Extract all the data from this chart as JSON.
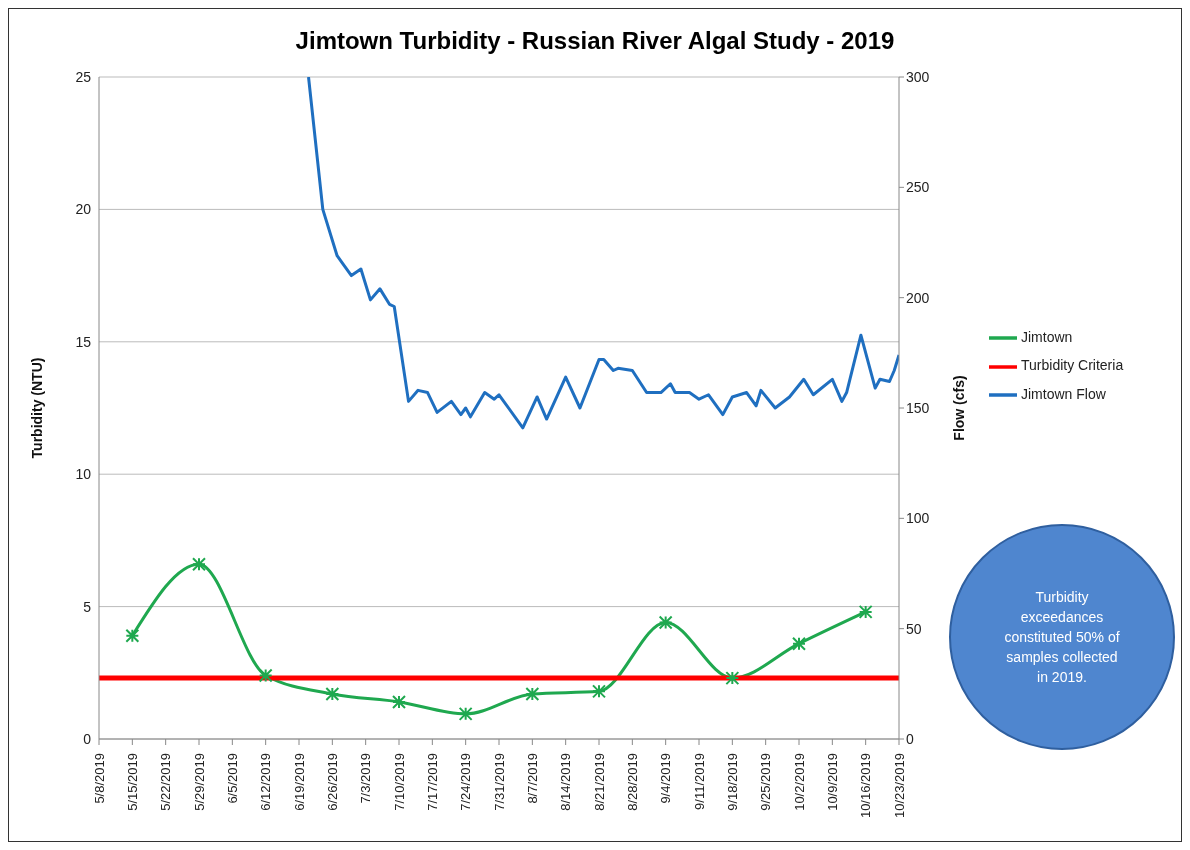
{
  "chart_data": {
    "type": "line",
    "title": "Jimtown Turbidity - Russian River Algal Study - 2019",
    "ylabel": "Turbidity (NTU)",
    "y2label": "Flow (cfs)",
    "xlim": [
      "2019-05-08",
      "2019-10-23"
    ],
    "xticks": [
      {
        "value": "2019-05-08",
        "label": "5/8/2019"
      },
      {
        "value": "2019-05-15",
        "label": "5/15/2019"
      },
      {
        "value": "2019-05-22",
        "label": "5/22/2019"
      },
      {
        "value": "2019-05-29",
        "label": "5/29/2019"
      },
      {
        "value": "2019-06-05",
        "label": "6/5/2019"
      },
      {
        "value": "2019-06-12",
        "label": "6/12/2019"
      },
      {
        "value": "2019-06-19",
        "label": "6/19/2019"
      },
      {
        "value": "2019-06-26",
        "label": "6/26/2019"
      },
      {
        "value": "2019-07-03",
        "label": "7/3/2019"
      },
      {
        "value": "2019-07-10",
        "label": "7/10/2019"
      },
      {
        "value": "2019-07-17",
        "label": "7/17/2019"
      },
      {
        "value": "2019-07-24",
        "label": "7/24/2019"
      },
      {
        "value": "2019-07-31",
        "label": "7/31/2019"
      },
      {
        "value": "2019-08-07",
        "label": "8/7/2019"
      },
      {
        "value": "2019-08-14",
        "label": "8/14/2019"
      },
      {
        "value": "2019-08-21",
        "label": "8/21/2019"
      },
      {
        "value": "2019-08-28",
        "label": "8/28/2019"
      },
      {
        "value": "2019-09-04",
        "label": "9/4/2019"
      },
      {
        "value": "2019-09-11",
        "label": "9/11/2019"
      },
      {
        "value": "2019-09-18",
        "label": "9/18/2019"
      },
      {
        "value": "2019-09-25",
        "label": "9/25/2019"
      },
      {
        "value": "2019-10-02",
        "label": "10/2/2019"
      },
      {
        "value": "2019-10-09",
        "label": "10/9/2019"
      },
      {
        "value": "2019-10-16",
        "label": "10/16/2019"
      },
      {
        "value": "2019-10-23",
        "label": "10/23/2019"
      }
    ],
    "ylim": [
      0,
      25
    ],
    "yticks": [
      0,
      5,
      10,
      15,
      20,
      25
    ],
    "y2lim": [
      0,
      300
    ],
    "y2ticks": [
      0,
      50,
      100,
      150,
      200,
      250,
      300
    ],
    "grid": "y",
    "legend": "right",
    "series": [
      {
        "name": "Jimtown",
        "color": "#1fa84f",
        "marker": "cross",
        "x": [
          "2019-05-15",
          "2019-05-29",
          "2019-06-12",
          "2019-06-26",
          "2019-07-10",
          "2019-07-24",
          "2019-08-07",
          "2019-08-21",
          "2019-09-04",
          "2019-09-18",
          "2019-10-02",
          "2019-10-16"
        ],
        "values": [
          3.9,
          6.6,
          2.4,
          1.7,
          1.4,
          0.95,
          1.7,
          1.8,
          4.4,
          2.3,
          3.6,
          4.8
        ]
      },
      {
        "name": "Turbidity Criteria",
        "color": "#ff0000",
        "marker": "none",
        "x": [
          "2019-05-08",
          "2019-10-23"
        ],
        "values": [
          2.3,
          2.3
        ]
      },
      {
        "name": "Jimtown Flow",
        "color": "#1f6fc0",
        "marker": "none",
        "axis": "y2",
        "x": [
          "2019-06-21",
          "2019-06-24",
          "2019-06-27",
          "2019-06-28",
          "2019-06-30",
          "2019-07-02",
          "2019-07-04",
          "2019-07-06",
          "2019-07-08",
          "2019-07-09",
          "2019-07-12",
          "2019-07-14",
          "2019-07-16",
          "2019-07-18",
          "2019-07-21",
          "2019-07-23",
          "2019-07-24",
          "2019-07-25",
          "2019-07-28",
          "2019-07-30",
          "2019-07-31",
          "2019-08-05",
          "2019-08-08",
          "2019-08-10",
          "2019-08-14",
          "2019-08-17",
          "2019-08-21",
          "2019-08-22",
          "2019-08-24",
          "2019-08-25",
          "2019-08-28",
          "2019-08-31",
          "2019-09-03",
          "2019-09-05",
          "2019-09-06",
          "2019-09-09",
          "2019-09-11",
          "2019-09-13",
          "2019-09-16",
          "2019-09-18",
          "2019-09-21",
          "2019-09-23",
          "2019-09-24",
          "2019-09-27",
          "2019-09-30",
          "2019-10-03",
          "2019-10-05",
          "2019-10-09",
          "2019-10-11",
          "2019-10-12",
          "2019-10-15",
          "2019-10-18",
          "2019-10-19",
          "2019-10-21",
          "2019-10-22",
          "2019-10-23"
        ],
        "values": [
          300,
          240,
          219,
          216,
          210,
          213,
          199,
          204,
          197,
          196,
          153,
          158,
          157,
          148,
          153,
          147,
          150,
          146,
          157,
          154,
          156,
          141,
          155,
          145,
          164,
          150,
          172,
          172,
          167,
          168,
          167,
          157,
          157,
          161,
          157,
          157,
          154,
          156,
          147,
          155,
          157,
          151,
          158,
          150,
          155,
          163,
          156,
          163,
          153,
          157,
          183,
          159,
          163,
          162,
          167,
          174
        ]
      }
    ],
    "annotations": [
      "Turbidity exceedances constituted 50% of samples collected in 2019."
    ]
  }
}
